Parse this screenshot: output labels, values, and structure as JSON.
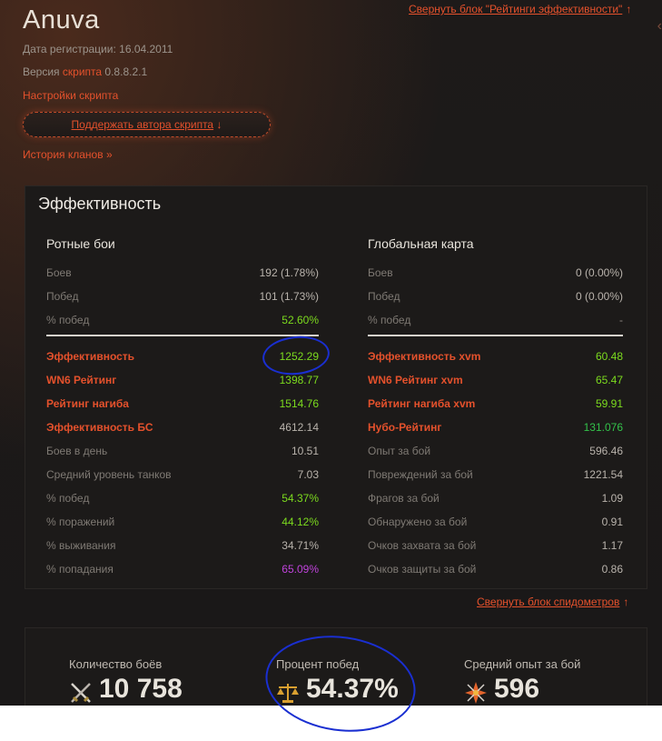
{
  "header": {
    "player_name": "Anuva",
    "collapse_ratings": "Свернуть блок \"Рейтинги эффективности\"",
    "arrow_up": "↑",
    "reg_label": "Дата регистрации:",
    "reg_date": "16.04.2011",
    "version_label": "Версия",
    "version_link": "скрипта",
    "version_number": "0.8.8.2.1",
    "script_settings": "Настройки скрипта",
    "support_button": "Поддержать автора скрипта",
    "support_arrow": "↓",
    "clan_history": "История кланов »",
    "edge_chevron": "‹"
  },
  "panel": {
    "title": "Эффективность",
    "left": {
      "title": "Ротные бои",
      "rows": [
        {
          "label": "Боев",
          "value": "192 (1.78%)"
        },
        {
          "label": "Побед",
          "value": "101 (1.73%)"
        },
        {
          "label": "% побед",
          "value": "52.60%"
        },
        {
          "label": "Эффективность",
          "value": "1252.29"
        },
        {
          "label": "WN6 Рейтинг",
          "value": "1398.77"
        },
        {
          "label": "Рейтинг нагиба",
          "value": "1514.76"
        },
        {
          "label": "Эффективность БС",
          "value": "4612.14"
        },
        {
          "label": "Боев в день",
          "value": "10.51"
        },
        {
          "label": "Средний уровень танков",
          "value": "7.03"
        },
        {
          "label": "% побед",
          "value": "54.37%"
        },
        {
          "label": "% поражений",
          "value": "44.12%"
        },
        {
          "label": "% выживания",
          "value": "34.71%"
        },
        {
          "label": "% попадания",
          "value": "65.09%"
        }
      ]
    },
    "right": {
      "title": "Глобальная карта",
      "rows": [
        {
          "label": "Боев",
          "value": "0 (0.00%)"
        },
        {
          "label": "Побед",
          "value": "0 (0.00%)"
        },
        {
          "label": "% побед",
          "value": "-"
        },
        {
          "label": "Эффективность xvm",
          "value": "60.48"
        },
        {
          "label": "WN6 Рейтинг xvm",
          "value": "65.47"
        },
        {
          "label": "Рейтинг нагиба xvm",
          "value": "59.91"
        },
        {
          "label": "Нубо-Рейтинг",
          "value": "131.076"
        },
        {
          "label": "Опыт за бой",
          "value": "596.46"
        },
        {
          "label": "Повреждений за бой",
          "value": "1221.54"
        },
        {
          "label": "Фрагов за бой",
          "value": "1.09"
        },
        {
          "label": "Обнаружено за бой",
          "value": "0.91"
        },
        {
          "label": "Очков захвата за бой",
          "value": "1.17"
        },
        {
          "label": "Очков защиты за бой",
          "value": "0.86"
        }
      ]
    }
  },
  "collapse_speedometers": "Свернуть блок спидометров",
  "stats": {
    "battles": {
      "label": "Количество боёв",
      "value": "10 758"
    },
    "win_rate": {
      "label": "Процент побед",
      "value": "54.37%"
    },
    "avg_xp": {
      "label": "Средний опыт за бой",
      "value": "596"
    }
  },
  "colors": {
    "accent": "#e4512c",
    "good": "#7cdb1e",
    "great": "#33c24a",
    "unicum": "#c043dc",
    "annotation": "#1a2fd1"
  },
  "icons": {
    "battles": "crossed-swords-icon",
    "win_rate": "scales-icon",
    "avg_xp": "star-burst-icon"
  }
}
